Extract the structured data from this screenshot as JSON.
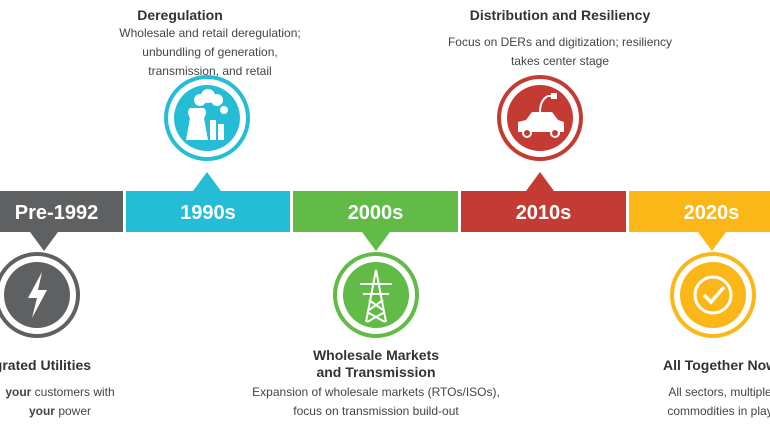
{
  "colors": {
    "pre": "#5f6062",
    "y1990": "#25bcd6",
    "y2000": "#62bb46",
    "y2010": "#c33b32",
    "y2020": "#fbb717"
  },
  "eras": [
    {
      "label": "Pre-1992",
      "title": "Integrated Utilities",
      "desc_bold1": "your",
      "desc1": " customers with",
      "desc_bold2": "your",
      "desc2": " power",
      "icon": "lightning-bolt-icon"
    },
    {
      "label": "1990s",
      "title": "Deregulation",
      "desc1": "Wholesale and retail deregulation;",
      "desc2": "unbundling of generation,",
      "desc3": "transmission, and retail",
      "icon": "power-plant-icon"
    },
    {
      "label": "2000s",
      "title1": "Wholesale Markets",
      "title2": "and Transmission",
      "desc1": "Expansion of wholesale markets (RTOs/ISOs),",
      "desc2": "focus on transmission build-out",
      "icon": "transmission-tower-icon"
    },
    {
      "label": "2010s",
      "title": "Distribution and Resiliency",
      "desc1": "Focus on DERs and digitization; resiliency",
      "desc2": "takes center stage",
      "icon": "electric-car-icon"
    },
    {
      "label": "2020s",
      "title": "All Together Now",
      "desc1": "All sectors, multiple",
      "desc2": "commodities in play",
      "icon": "checkmark-icon"
    }
  ]
}
